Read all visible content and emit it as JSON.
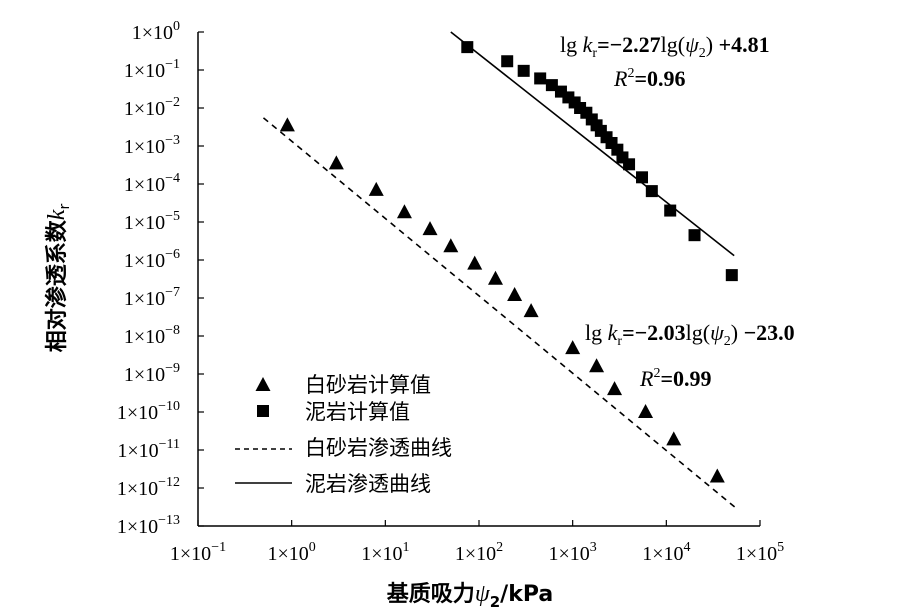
{
  "chart_data": {
    "type": "scatter",
    "xscale": "log",
    "yscale": "log",
    "xlim": [
      0.1,
      100000
    ],
    "ylim": [
      1e-13,
      1
    ],
    "xlabel": "基质吸力ψ2/kPa",
    "ylabel": "相对渗透系数kr",
    "x_ticks": [
      "1×10^-1",
      "1×10^0",
      "1×10^1",
      "1×10^2",
      "1×10^3",
      "1×10^4",
      "1×10^5"
    ],
    "y_ticks": [
      "1×10^0",
      "1×10^-1",
      "1×10^-2",
      "1×10^-3",
      "1×10^-4",
      "1×10^-5",
      "1×10^-6",
      "1×10^-7",
      "1×10^-8",
      "1×10^-9",
      "1×10^-10",
      "1×10^-11",
      "1×10^-12",
      "1×10^-13"
    ],
    "grid": false,
    "legend_position": "lower-left",
    "series": [
      {
        "name": "白砂岩计算值",
        "kind": "scatter",
        "marker": "triangle",
        "color": "#000000",
        "points": [
          [
            0.9,
            0.0035
          ],
          [
            3,
            0.00035
          ],
          [
            8,
            7e-05
          ],
          [
            16,
            1.8e-05
          ],
          [
            30,
            6.5e-06
          ],
          [
            50,
            2.3e-06
          ],
          [
            90,
            8e-07
          ],
          [
            150,
            3.2e-07
          ],
          [
            240,
            1.2e-07
          ],
          [
            360,
            4.5e-08
          ],
          [
            1000,
            4.8e-09
          ],
          [
            1800,
            1.6e-09
          ],
          [
            2800,
            4e-10
          ],
          [
            6000,
            1e-10
          ],
          [
            12000,
            1.9e-11
          ],
          [
            35000,
            2e-12
          ]
        ]
      },
      {
        "name": "泥岩计算值",
        "kind": "scatter",
        "marker": "square",
        "color": "#000000",
        "points": [
          [
            75,
            0.4
          ],
          [
            200,
            0.17
          ],
          [
            300,
            0.095
          ],
          [
            450,
            0.06
          ],
          [
            600,
            0.04
          ],
          [
            750,
            0.027
          ],
          [
            900,
            0.019
          ],
          [
            1050,
            0.014
          ],
          [
            1200,
            0.01
          ],
          [
            1400,
            0.0075
          ],
          [
            1600,
            0.005
          ],
          [
            1800,
            0.0035
          ],
          [
            2000,
            0.0025
          ],
          [
            2300,
            0.0017
          ],
          [
            2600,
            0.0012
          ],
          [
            3000,
            0.0008
          ],
          [
            3400,
            0.0005
          ],
          [
            4000,
            0.00033
          ],
          [
            5500,
            0.00015
          ],
          [
            7000,
            6.5e-05
          ],
          [
            11000,
            2e-05
          ],
          [
            20000,
            4.5e-06
          ],
          [
            50000,
            4e-07
          ]
        ]
      },
      {
        "name": "白砂岩渗透曲线",
        "kind": "line",
        "style": "dashed",
        "color": "#000000",
        "points": [
          [
            0.5,
            0.0055
          ],
          [
            57000.0,
            2.8e-13
          ]
        ]
      },
      {
        "name": "泥岩渗透曲线",
        "kind": "line",
        "style": "solid",
        "color": "#000000",
        "points": [
          [
            50,
            1
          ],
          [
            53000.0,
            1.3e-06
          ]
        ]
      }
    ],
    "annotations": [
      {
        "lines": [
          "lg kr=−2.27lg(ψ2)+4.81",
          "R²=0.96"
        ]
      },
      {
        "lines": [
          "lg kr=−2.03lg(ψ2)−23.0",
          "R²=0.99"
        ]
      }
    ]
  }
}
